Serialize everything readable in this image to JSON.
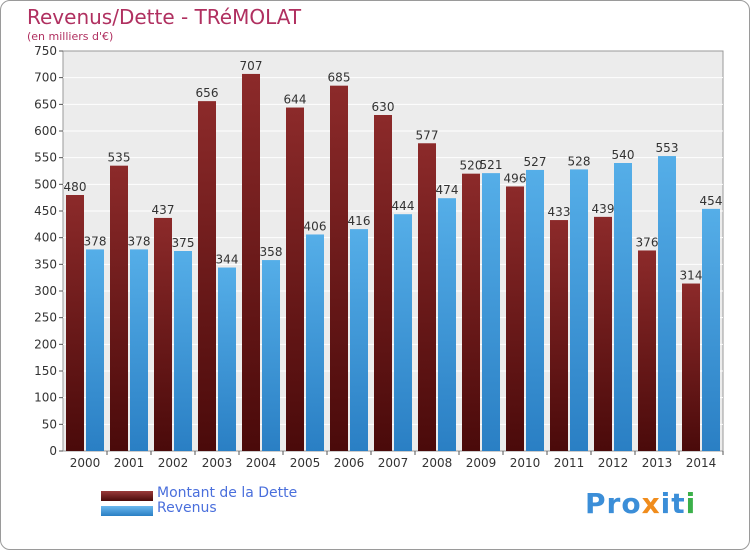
{
  "chart_data": {
    "type": "bar",
    "title": "Revenus/Dette - TRéMOLAT",
    "subtitle": "(en milliers d'€)",
    "categories": [
      "2000",
      "2001",
      "2002",
      "2003",
      "2004",
      "2005",
      "2006",
      "2007",
      "2008",
      "2009",
      "2010",
      "2011",
      "2012",
      "2013",
      "2014"
    ],
    "series": [
      {
        "name": "Montant de la Dette",
        "color": "#7a1f1f",
        "values": [
          480,
          535,
          437,
          656,
          707,
          644,
          685,
          630,
          577,
          520,
          496,
          433,
          439,
          376,
          314
        ]
      },
      {
        "name": "Revenus",
        "color": "#3a98dc",
        "values": [
          378,
          378,
          375,
          344,
          358,
          406,
          416,
          444,
          474,
          521,
          527,
          528,
          540,
          553,
          454
        ]
      }
    ],
    "ylim": [
      0,
      750
    ],
    "yticks": [
      0,
      50,
      100,
      150,
      200,
      250,
      300,
      350,
      400,
      450,
      500,
      550,
      600,
      650,
      700,
      750
    ],
    "grid": true,
    "legend_position": "bottom-left"
  },
  "logo": {
    "p1": "Pro",
    "x": "x",
    "i1": "i",
    "t": "t",
    "i2": "i"
  }
}
